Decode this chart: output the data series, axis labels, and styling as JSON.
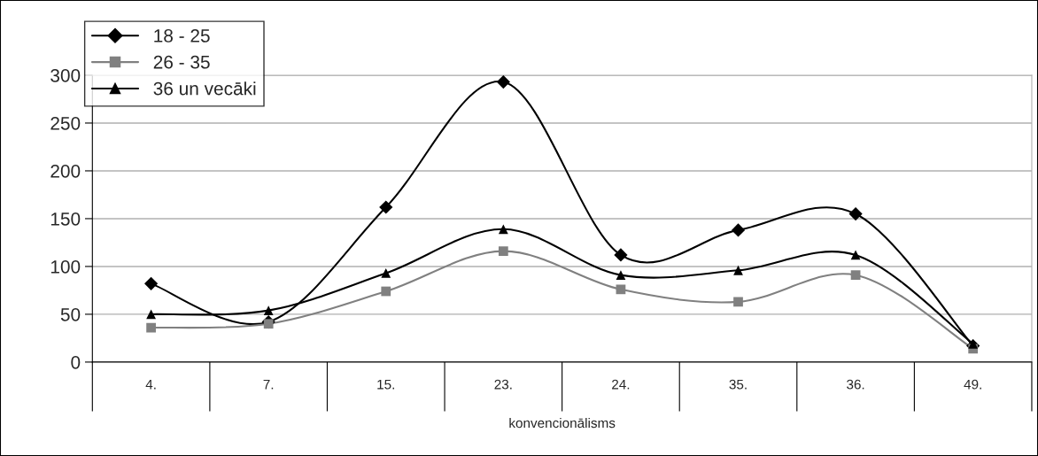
{
  "chart_data": {
    "type": "line",
    "xlabel": "konvencionālisms",
    "categories": [
      "4.",
      "7.",
      "15.",
      "23.",
      "24.",
      "35.",
      "36.",
      "49."
    ],
    "series": [
      {
        "name": "18 - 25",
        "color": "#000000",
        "marker": "diamond",
        "values": [
          82,
          42,
          162,
          293,
          112,
          138,
          155,
          17
        ]
      },
      {
        "name": "26 - 35",
        "color": "#808080",
        "marker": "square",
        "values": [
          36,
          40,
          74,
          116,
          76,
          63,
          91,
          14
        ]
      },
      {
        "name": "36 un vecāki",
        "color": "#000000",
        "marker": "triangle",
        "values": [
          50,
          54,
          93,
          139,
          91,
          96,
          112,
          19
        ]
      }
    ],
    "ylim": [
      0,
      300
    ],
    "yticks": [
      0,
      50,
      100,
      150,
      200,
      250,
      300
    ],
    "grid": "y",
    "legend": "top left"
  }
}
